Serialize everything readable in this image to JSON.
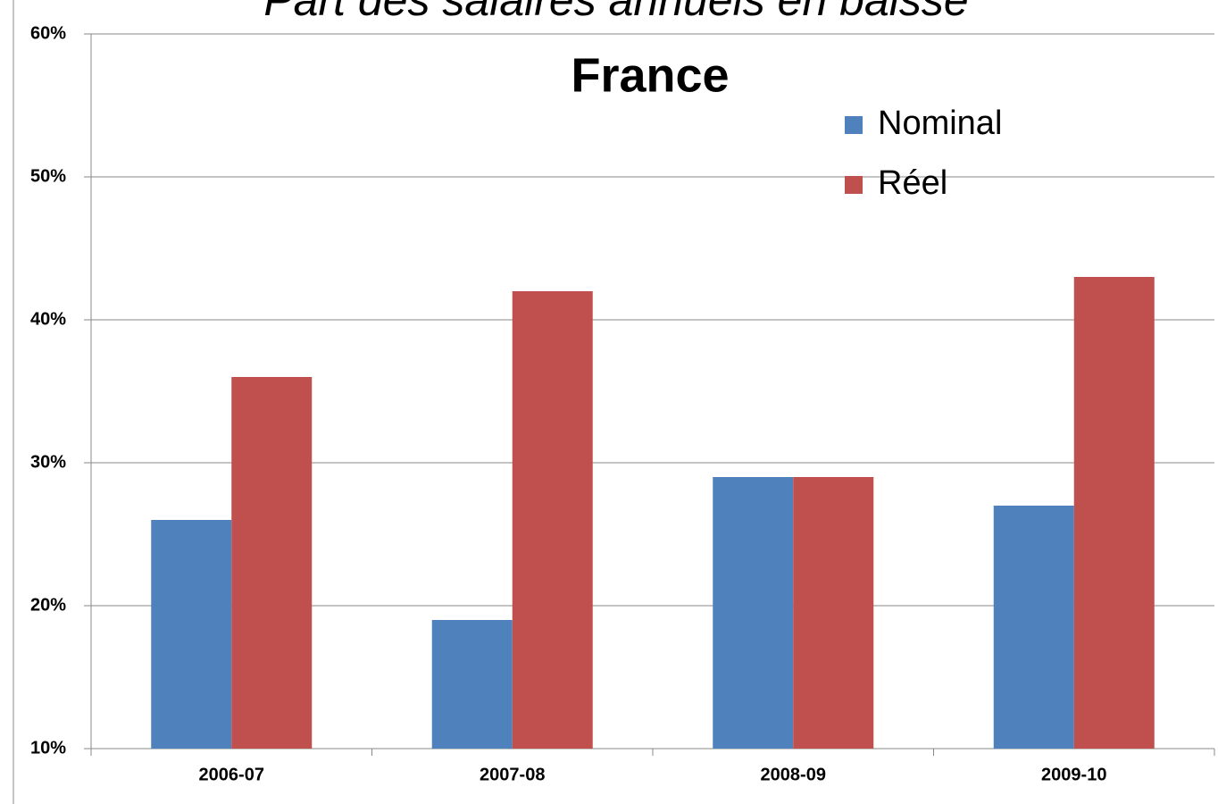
{
  "chart_data": {
    "type": "bar",
    "title": "Part des salaires annuels en baisse",
    "subtitle": "France",
    "categories": [
      "2006-07",
      "2007-08",
      "2008-09",
      "2009-10"
    ],
    "series": [
      {
        "name": "Nominal",
        "color": "#4f81bd",
        "values": [
          26,
          19,
          29,
          27
        ]
      },
      {
        "name": "Réel",
        "color": "#c0504d",
        "values": [
          36,
          42,
          29,
          43
        ]
      }
    ],
    "ylim": [
      10,
      60
    ],
    "yticks": [
      {
        "value": 10,
        "label": "10%"
      },
      {
        "value": 20,
        "label": "20%"
      },
      {
        "value": 30,
        "label": "30%"
      },
      {
        "value": 40,
        "label": "40%"
      },
      {
        "value": 50,
        "label": "50%"
      },
      {
        "value": 60,
        "label": "60%"
      }
    ],
    "grid": true,
    "legend": "upper right"
  }
}
